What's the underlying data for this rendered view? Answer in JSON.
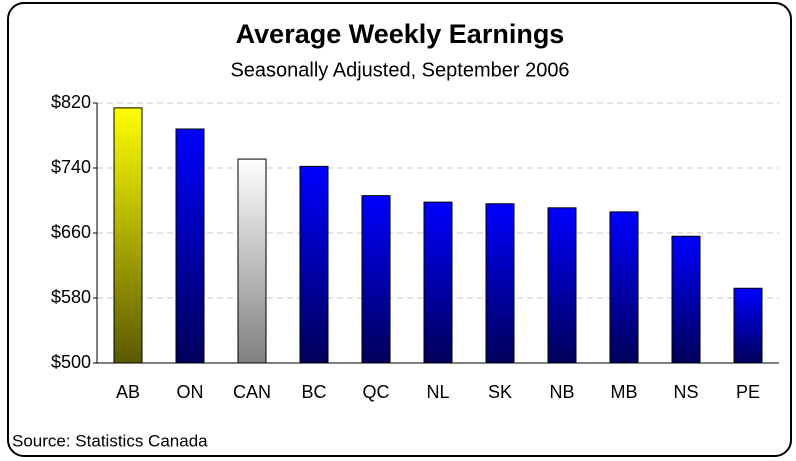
{
  "chart_data": {
    "type": "bar",
    "title": "Average Weekly Earnings",
    "subtitle": "Seasonally Adjusted, September 2006",
    "source": "Source:  Statistics Canada",
    "categories": [
      "AB",
      "ON",
      "CAN",
      "BC",
      "QC",
      "NL",
      "SK",
      "NB",
      "MB",
      "NS",
      "PE"
    ],
    "values": [
      814,
      788,
      751,
      742,
      706,
      698,
      696,
      691,
      686,
      656,
      592
    ],
    "colors": [
      "#ffff00",
      "#0000ff",
      "#ffffff",
      "#0000ff",
      "#0000ff",
      "#0000ff",
      "#0000ff",
      "#0000ff",
      "#0000ff",
      "#0000ff",
      "#0000ff"
    ],
    "ylim": [
      500,
      820
    ],
    "yticks": [
      {
        "value": 500,
        "label": "$500"
      },
      {
        "value": 580,
        "label": "$580"
      },
      {
        "value": 660,
        "label": "$660"
      },
      {
        "value": 740,
        "label": "$740"
      },
      {
        "value": 820,
        "label": "$820"
      }
    ],
    "grid": true
  }
}
